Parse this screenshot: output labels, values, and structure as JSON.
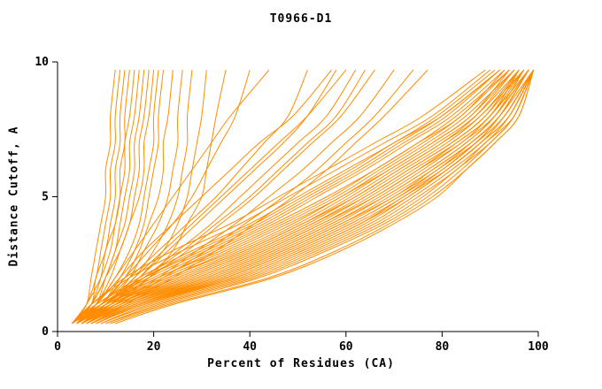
{
  "page": {
    "background": "#ffffff"
  },
  "chart_data": {
    "type": "line",
    "title": "T0966-D1",
    "xlabel": "Percent of Residues (CA)",
    "ylabel": "Distance Cutoff, A",
    "xlim": [
      0,
      100
    ],
    "ylim": [
      0,
      10
    ],
    "xticks": [
      0,
      20,
      40,
      60,
      80,
      100
    ],
    "yticks": [
      0,
      5,
      10
    ],
    "grid": false,
    "legend": "none",
    "line_color": "#ff8c00",
    "axis_color": "#000000",
    "y_grid": [
      0.3,
      1,
      2,
      3,
      4,
      5,
      6,
      7,
      8,
      9.7
    ],
    "curves": [
      [
        3,
        6,
        7,
        8,
        9,
        10,
        10,
        11,
        11,
        12
      ],
      [
        3,
        6,
        8,
        9,
        10,
        11,
        11,
        12,
        12,
        13
      ],
      [
        3,
        7,
        8,
        10,
        11,
        12,
        12,
        13,
        13,
        14
      ],
      [
        4,
        7,
        9,
        10,
        12,
        13,
        13,
        14,
        14,
        15
      ],
      [
        3,
        6,
        9,
        11,
        12,
        13,
        14,
        14,
        15,
        16
      ],
      [
        4,
        8,
        10,
        12,
        13,
        14,
        15,
        15,
        16,
        17
      ],
      [
        3,
        7,
        10,
        12,
        14,
        15,
        16,
        16,
        17,
        18
      ],
      [
        4,
        8,
        11,
        13,
        15,
        16,
        17,
        17,
        18,
        19
      ],
      [
        3,
        7,
        10,
        13,
        15,
        17,
        18,
        18,
        19,
        20
      ],
      [
        4,
        8,
        12,
        15,
        17,
        18,
        19,
        20,
        20,
        21
      ],
      [
        3,
        9,
        13,
        16,
        18,
        19,
        20,
        21,
        21,
        22
      ],
      [
        4,
        9,
        14,
        17,
        19,
        21,
        22,
        22,
        23,
        24
      ],
      [
        5,
        10,
        15,
        18,
        21,
        23,
        24,
        25,
        25,
        26
      ],
      [
        4,
        10,
        16,
        20,
        23,
        25,
        26,
        27,
        27,
        28
      ],
      [
        5,
        11,
        17,
        22,
        25,
        27,
        28,
        29,
        30,
        31
      ],
      [
        5,
        12,
        19,
        24,
        27,
        30,
        31,
        32,
        33,
        35
      ],
      [
        4,
        9,
        15,
        21,
        27,
        33,
        38,
        43,
        48,
        52
      ],
      [
        4,
        10,
        17,
        23,
        29,
        35,
        41,
        47,
        52,
        58
      ],
      [
        5,
        10,
        18,
        25,
        32,
        38,
        44,
        50,
        56,
        62
      ],
      [
        4,
        11,
        19,
        27,
        34,
        41,
        47,
        53,
        59,
        66
      ],
      [
        5,
        12,
        21,
        29,
        37,
        44,
        51,
        57,
        63,
        70
      ],
      [
        4,
        10,
        16,
        22,
        28,
        34,
        40,
        46,
        52,
        60
      ],
      [
        5,
        13,
        22,
        31,
        39,
        47,
        54,
        60,
        66,
        74
      ],
      [
        4,
        8,
        13,
        18,
        24,
        30,
        36,
        42,
        49,
        57
      ],
      [
        5,
        11,
        18,
        26,
        33,
        40,
        46,
        52,
        58,
        64
      ],
      [
        6,
        14,
        24,
        33,
        41,
        49,
        56,
        62,
        68,
        77
      ],
      [
        4,
        9,
        14,
        19,
        24,
        28,
        31,
        34,
        37,
        40
      ],
      [
        3,
        8,
        12,
        16,
        20,
        24,
        28,
        32,
        36,
        44
      ],
      [
        3,
        8,
        18,
        30,
        42,
        52,
        62,
        71,
        80,
        92
      ],
      [
        3,
        9,
        20,
        32,
        44,
        54,
        64,
        73,
        82,
        93
      ],
      [
        4,
        9,
        21,
        33,
        45,
        56,
        66,
        75,
        83,
        94
      ],
      [
        4,
        10,
        22,
        35,
        47,
        58,
        67,
        76,
        84,
        94
      ],
      [
        4,
        10,
        23,
        36,
        48,
        59,
        68,
        77,
        85,
        95
      ],
      [
        4,
        11,
        24,
        38,
        50,
        60,
        69,
        78,
        86,
        95
      ],
      [
        5,
        11,
        25,
        39,
        51,
        61,
        70,
        79,
        87,
        96
      ],
      [
        5,
        12,
        26,
        40,
        52,
        62,
        71,
        80,
        88,
        96
      ],
      [
        5,
        12,
        27,
        41,
        53,
        63,
        72,
        81,
        88,
        97
      ],
      [
        5,
        13,
        28,
        42,
        54,
        64,
        73,
        82,
        89,
        97
      ],
      [
        6,
        13,
        29,
        43,
        55,
        65,
        74,
        83,
        90,
        97
      ],
      [
        6,
        14,
        30,
        44,
        56,
        66,
        75,
        84,
        90,
        98
      ],
      [
        6,
        14,
        31,
        45,
        57,
        67,
        76,
        84,
        91,
        98
      ],
      [
        6,
        15,
        32,
        46,
        58,
        68,
        77,
        85,
        91,
        98
      ],
      [
        7,
        15,
        33,
        47,
        59,
        69,
        78,
        86,
        92,
        98
      ],
      [
        7,
        16,
        34,
        48,
        60,
        70,
        79,
        86,
        92,
        99
      ],
      [
        7,
        16,
        35,
        49,
        61,
        71,
        79,
        87,
        93,
        99
      ],
      [
        7,
        17,
        36,
        50,
        62,
        72,
        80,
        87,
        93,
        99
      ],
      [
        8,
        17,
        37,
        51,
        63,
        72,
        81,
        88,
        93,
        99
      ],
      [
        8,
        18,
        38,
        52,
        64,
        73,
        81,
        88,
        94,
        99
      ],
      [
        4,
        9,
        19,
        31,
        43,
        53,
        63,
        72,
        81,
        92
      ],
      [
        4,
        10,
        21,
        34,
        46,
        57,
        66,
        75,
        84,
        93
      ],
      [
        5,
        11,
        23,
        37,
        49,
        59,
        69,
        78,
        86,
        94
      ],
      [
        5,
        12,
        25,
        39,
        51,
        62,
        71,
        80,
        87,
        95
      ],
      [
        6,
        13,
        27,
        41,
        53,
        64,
        73,
        82,
        89,
        96
      ],
      [
        6,
        14,
        29,
        43,
        55,
        66,
        75,
        83,
        90,
        96
      ],
      [
        7,
        15,
        31,
        45,
        57,
        68,
        77,
        85,
        91,
        97
      ],
      [
        7,
        16,
        33,
        47,
        59,
        70,
        78,
        86,
        92,
        98
      ],
      [
        8,
        17,
        35,
        49,
        61,
        71,
        80,
        87,
        92,
        98
      ],
      [
        8,
        18,
        37,
        51,
        63,
        73,
        81,
        88,
        94,
        99
      ],
      [
        3,
        8,
        17,
        28,
        40,
        50,
        60,
        70,
        79,
        91
      ],
      [
        4,
        9,
        18,
        29,
        41,
        51,
        61,
        70,
        80,
        92
      ],
      [
        9,
        19,
        39,
        53,
        65,
        74,
        82,
        89,
        94,
        99
      ],
      [
        9,
        20,
        40,
        54,
        66,
        75,
        83,
        89,
        95,
        99
      ],
      [
        10,
        21,
        41,
        55,
        67,
        76,
        83,
        90,
        95,
        99
      ],
      [
        10,
        22,
        42,
        56,
        68,
        77,
        84,
        90,
        95,
        99
      ],
      [
        11,
        23,
        44,
        58,
        69,
        78,
        85,
        91,
        96,
        99
      ],
      [
        12,
        24,
        45,
        59,
        70,
        79,
        85,
        91,
        96,
        99
      ],
      [
        3,
        7,
        15,
        26,
        38,
        48,
        58,
        68,
        78,
        90
      ],
      [
        3,
        7,
        14,
        24,
        36,
        46,
        56,
        66,
        76,
        89
      ]
    ]
  }
}
